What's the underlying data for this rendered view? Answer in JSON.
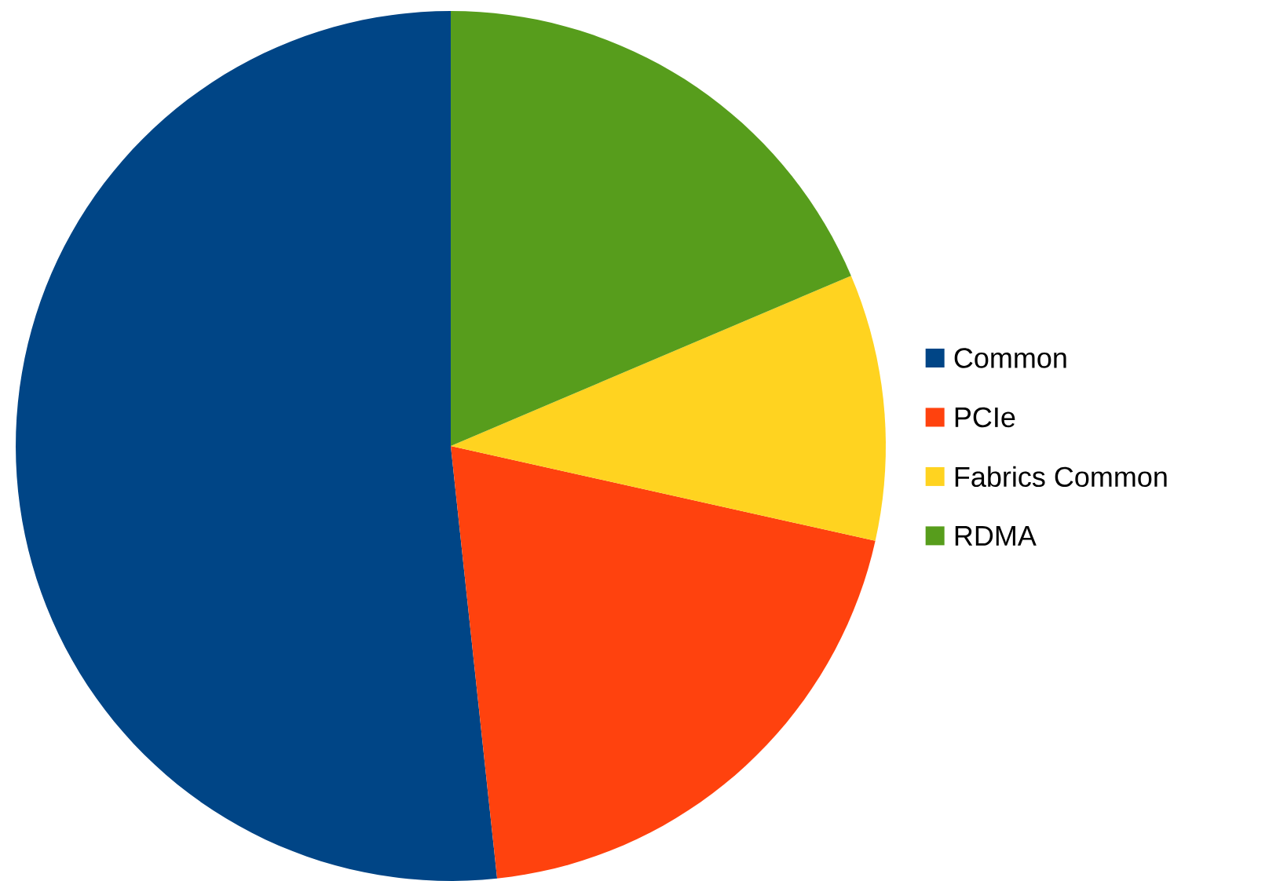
{
  "chart_data": {
    "type": "pie",
    "categories": [
      "Common",
      "PCIe",
      "Fabrics Common",
      "RDMA"
    ],
    "values": [
      51.7,
      19.8,
      9.9,
      18.6
    ],
    "colors": [
      "#004586",
      "#ff420e",
      "#ffd320",
      "#579d1c"
    ],
    "legend": "right"
  }
}
